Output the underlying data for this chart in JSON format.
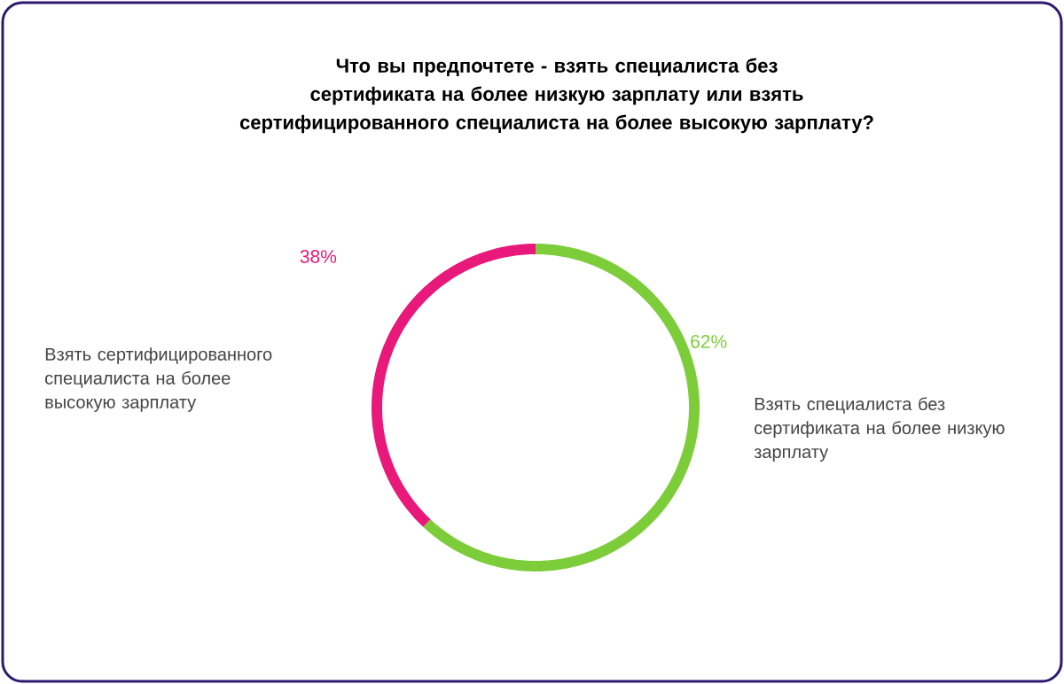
{
  "chart_data": {
    "type": "donut",
    "title": "Что вы предпочтете - взять специалиста без сертификата на более низкую зарплату или взять сертифицированного специалиста на более высокую зарплату?",
    "categories": [
      "Взять специалиста без сертификата на более низкую зарплату",
      "Взять сертифицированного специалиста на более высокую зарплату"
    ],
    "values": [
      62,
      38
    ],
    "colors": [
      "#7dcd3a",
      "#e8197a"
    ],
    "value_labels": [
      "62%",
      "38%"
    ]
  }
}
